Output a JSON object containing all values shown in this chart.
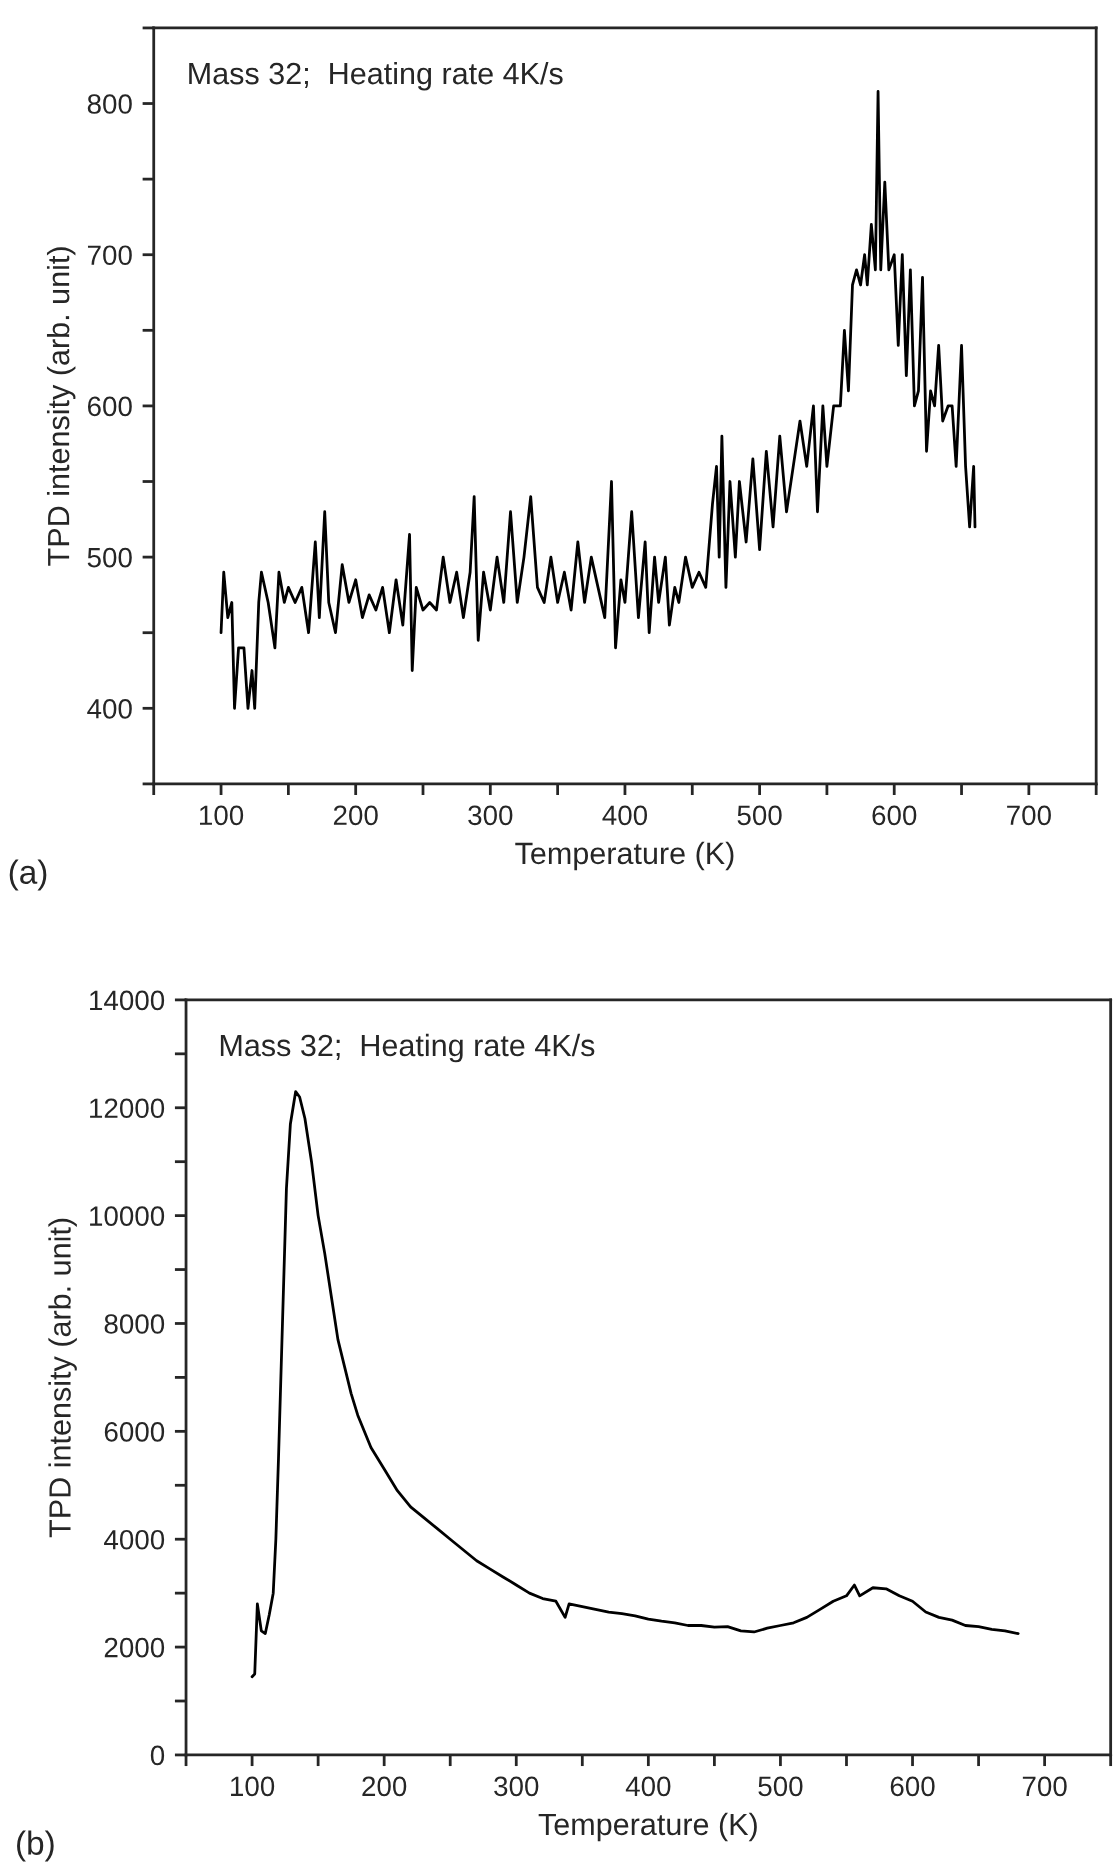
{
  "chart_data": [
    {
      "type": "line",
      "xlabel": "Temperature (K)",
      "ylabel": "TPD intensity (arb. unit)",
      "annotations": [
        "Mass 32;  Heating rate 4K/s",
        "(a)"
      ],
      "xlim": [
        50,
        750
      ],
      "ylim": [
        350,
        850
      ],
      "xticks": [
        {
          "value": 50,
          "label": null
        },
        100,
        {
          "value": 150,
          "label": null
        },
        200,
        {
          "value": 250,
          "label": null
        },
        300,
        {
          "value": 350,
          "label": null
        },
        400,
        {
          "value": 450,
          "label": null
        },
        500,
        {
          "value": 550,
          "label": null
        },
        600,
        {
          "value": 650,
          "label": null
        },
        700,
        {
          "value": 750,
          "label": null
        }
      ],
      "yticks": [
        {
          "value": 350,
          "label": null
        },
        400,
        {
          "value": 450,
          "label": null
        },
        500,
        {
          "value": 550,
          "label": null
        },
        600,
        {
          "value": 650,
          "label": null
        },
        700,
        {
          "value": 750,
          "label": null
        },
        800,
        {
          "value": 850,
          "label": null
        }
      ],
      "line_style": "solid",
      "marker": "none",
      "grid": false,
      "series": [
        {
          "color": "#000000",
          "x": [
            100,
            102,
            105,
            108,
            110,
            113,
            117,
            120,
            123,
            125,
            128,
            130,
            135,
            140,
            143,
            147,
            150,
            155,
            160,
            165,
            170,
            173,
            177,
            180,
            185,
            190,
            195,
            200,
            205,
            210,
            215,
            220,
            225,
            230,
            235,
            240,
            242,
            245,
            250,
            255,
            260,
            265,
            270,
            275,
            280,
            285,
            288,
            291,
            295,
            300,
            305,
            310,
            315,
            320,
            325,
            330,
            335,
            340,
            345,
            350,
            355,
            360,
            365,
            370,
            375,
            380,
            385,
            390,
            393,
            397,
            400,
            405,
            410,
            415,
            418,
            422,
            425,
            430,
            433,
            437,
            440,
            445,
            450,
            455,
            460,
            465,
            468,
            470,
            472,
            475,
            478,
            482,
            485,
            490,
            495,
            500,
            505,
            510,
            515,
            520,
            525,
            530,
            535,
            540,
            543,
            547,
            550,
            555,
            560,
            563,
            566,
            569,
            572,
            575,
            578,
            580,
            583,
            586,
            588,
            590,
            593,
            596,
            600,
            603,
            606,
            609,
            612,
            615,
            618,
            621,
            624,
            627,
            630,
            633,
            636,
            640,
            643,
            646,
            650,
            653,
            656,
            659,
            660
          ],
          "values": [
            450,
            490,
            460,
            470,
            400,
            440,
            440,
            400,
            425,
            400,
            470,
            490,
            470,
            440,
            490,
            470,
            480,
            470,
            480,
            450,
            510,
            460,
            530,
            470,
            450,
            495,
            470,
            485,
            460,
            475,
            465,
            480,
            450,
            485,
            455,
            515,
            425,
            480,
            465,
            470,
            465,
            500,
            470,
            490,
            460,
            490,
            540,
            445,
            490,
            465,
            500,
            470,
            530,
            470,
            500,
            540,
            480,
            470,
            500,
            470,
            490,
            465,
            510,
            470,
            500,
            480,
            460,
            550,
            440,
            485,
            470,
            530,
            460,
            510,
            450,
            500,
            470,
            500,
            455,
            480,
            470,
            500,
            480,
            490,
            480,
            535,
            560,
            500,
            580,
            480,
            550,
            500,
            550,
            510,
            565,
            505,
            570,
            520,
            580,
            530,
            560,
            590,
            560,
            600,
            530,
            600,
            560,
            600,
            600,
            650,
            610,
            680,
            690,
            680,
            700,
            680,
            720,
            690,
            808,
            690,
            748,
            690,
            700,
            640,
            700,
            620,
            690,
            600,
            610,
            685,
            570,
            610,
            600,
            640,
            590,
            600,
            600,
            560,
            640,
            560,
            520,
            560,
            520
          ]
        }
      ]
    },
    {
      "type": "line",
      "xlabel": "Temperature (K)",
      "ylabel": "TPD intensity (arb. unit)",
      "annotations": [
        "Mass 32;  Heating rate 4K/s",
        "(b)"
      ],
      "xlim": [
        50,
        750
      ],
      "ylim": [
        0,
        14000
      ],
      "xticks": [
        {
          "value": 50,
          "label": null
        },
        100,
        {
          "value": 150,
          "label": null
        },
        200,
        {
          "value": 250,
          "label": null
        },
        300,
        {
          "value": 350,
          "label": null
        },
        400,
        {
          "value": 450,
          "label": null
        },
        500,
        {
          "value": 550,
          "label": null
        },
        600,
        {
          "value": 650,
          "label": null
        },
        700,
        {
          "value": 750,
          "label": null
        }
      ],
      "yticks": [
        0,
        {
          "value": 1000,
          "label": null
        },
        2000,
        {
          "value": 3000,
          "label": null
        },
        4000,
        {
          "value": 5000,
          "label": null
        },
        6000,
        {
          "value": 7000,
          "label": null
        },
        8000,
        {
          "value": 9000,
          "label": null
        },
        10000,
        {
          "value": 11000,
          "label": null
        },
        12000,
        {
          "value": 13000,
          "label": null
        },
        14000
      ],
      "line_style": "solid",
      "marker": "none",
      "grid": false,
      "series": [
        {
          "color": "#000000",
          "x": [
            100,
            102,
            104,
            107,
            110,
            113,
            116,
            118,
            120,
            123,
            126,
            129,
            133,
            136,
            140,
            145,
            150,
            155,
            160,
            165,
            170,
            175,
            180,
            190,
            200,
            210,
            220,
            230,
            240,
            250,
            260,
            270,
            280,
            290,
            300,
            310,
            320,
            330,
            337,
            340,
            350,
            360,
            370,
            380,
            390,
            400,
            410,
            420,
            430,
            440,
            450,
            460,
            470,
            480,
            490,
            500,
            510,
            520,
            530,
            540,
            550,
            556,
            560,
            570,
            580,
            590,
            600,
            610,
            620,
            630,
            640,
            650,
            660,
            670,
            680
          ],
          "values": [
            1450,
            1500,
            2800,
            2300,
            2250,
            2600,
            3000,
            4000,
            5500,
            8000,
            10500,
            11700,
            12300,
            12200,
            11800,
            11000,
            10000,
            9300,
            8500,
            7700,
            7200,
            6700,
            6300,
            5700,
            5300,
            4900,
            4600,
            4400,
            4200,
            4000,
            3800,
            3600,
            3450,
            3300,
            3150,
            3000,
            2900,
            2850,
            2550,
            2800,
            2750,
            2700,
            2650,
            2620,
            2580,
            2520,
            2480,
            2450,
            2400,
            2400,
            2370,
            2380,
            2300,
            2280,
            2350,
            2400,
            2450,
            2550,
            2700,
            2850,
            2950,
            3150,
            2950,
            3100,
            3080,
            2950,
            2850,
            2650,
            2550,
            2500,
            2400,
            2380,
            2330,
            2300,
            2250
          ]
        }
      ]
    }
  ]
}
